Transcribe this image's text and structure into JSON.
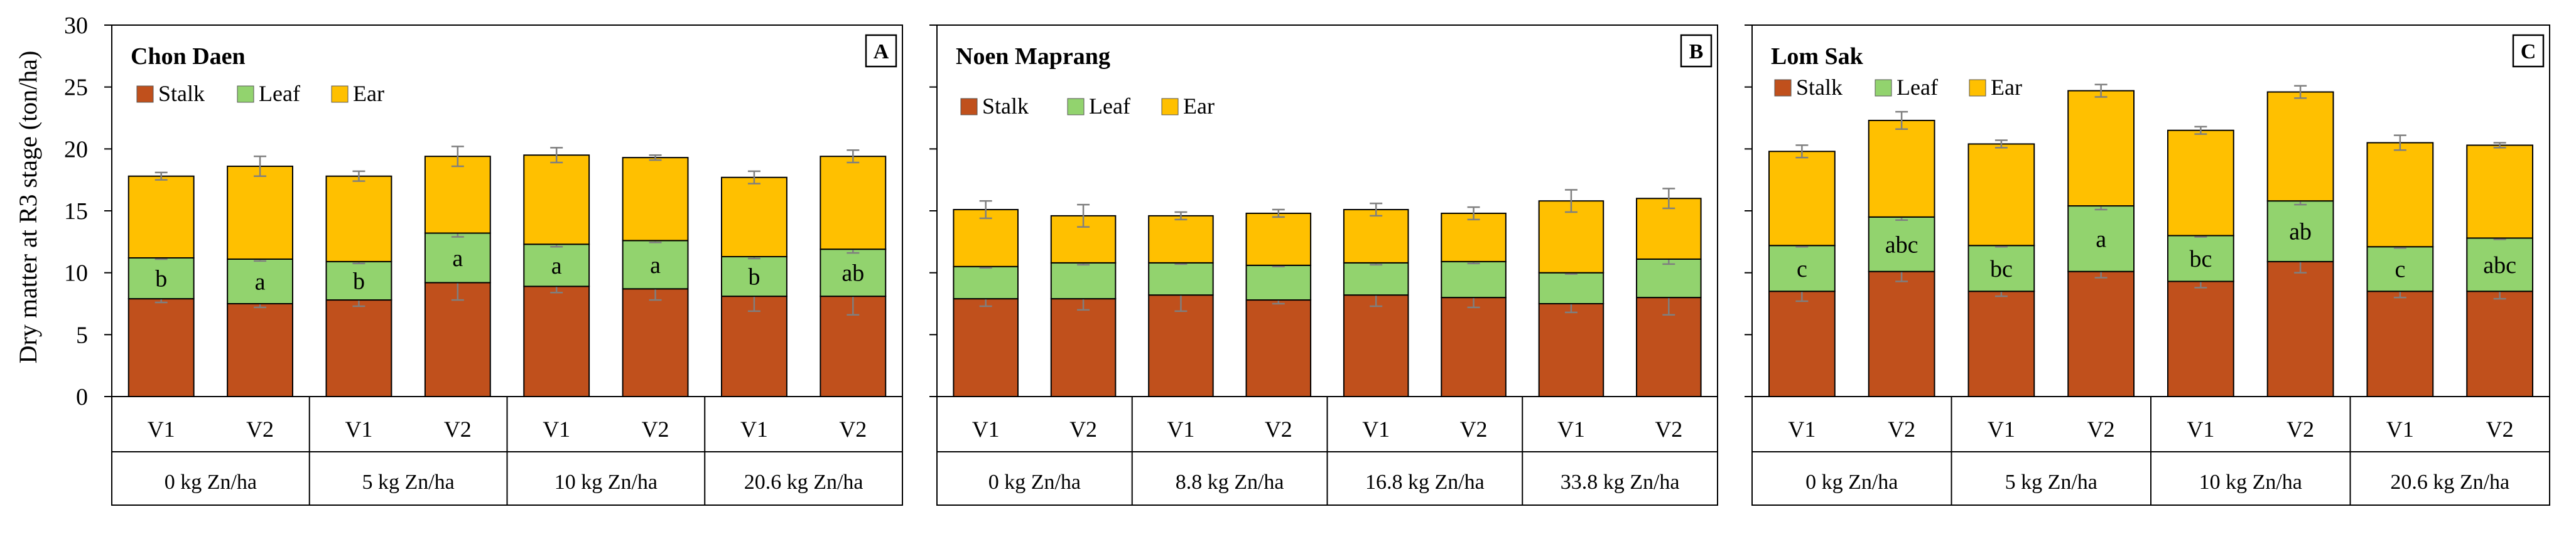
{
  "figure": {
    "ylabel": "Dry matter at R3 stage (ton/ha)",
    "y_ticks": [
      "0",
      "5",
      "10",
      "15",
      "20",
      "25",
      "30"
    ],
    "colors": {
      "Stalk": "#C0501C",
      "Leaf": "#92D36E",
      "Ear": "#FFC000",
      "error": "#7f7f7f"
    }
  },
  "chart_data": [
    {
      "type": "bar",
      "stacked": true,
      "title": "Chon Daen",
      "panel": "A",
      "ylim": [
        0,
        30
      ],
      "legend": [
        "Stalk",
        "Leaf",
        "Ear"
      ],
      "categories": [
        "V1",
        "V2",
        "V1",
        "V2",
        "V1",
        "V2",
        "V1",
        "V2"
      ],
      "groups": [
        "0 kg Zn/ha",
        "5 kg Zn/ha",
        "10 kg Zn/ha",
        "20.6 kg Zn/ha"
      ],
      "series": [
        {
          "name": "Stalk",
          "values": [
            7.9,
            7.5,
            7.8,
            9.2,
            8.9,
            8.7,
            8.1,
            8.1
          ],
          "errors": [
            0.3,
            0.3,
            0.5,
            1.4,
            0.5,
            0.9,
            1.2,
            1.5
          ]
        },
        {
          "name": "Leaf",
          "values": [
            3.3,
            3.6,
            3.1,
            4.0,
            3.4,
            3.9,
            3.2,
            3.8
          ],
          "errors": [
            0.1,
            0.15,
            0.15,
            0.3,
            0.2,
            0.15,
            0.15,
            0.3
          ]
        },
        {
          "name": "Ear",
          "values": [
            6.6,
            7.5,
            6.9,
            6.2,
            7.2,
            6.7,
            6.4,
            7.5
          ],
          "errors": [
            0.3,
            0.8,
            0.4,
            0.8,
            0.6,
            0.2,
            0.5,
            0.5
          ]
        }
      ],
      "labels": [
        "b",
        "a",
        "b",
        "a",
        "a",
        "a",
        "b",
        "ab"
      ]
    },
    {
      "type": "bar",
      "stacked": true,
      "title": "Noen Maprang",
      "panel": "B",
      "ylim": [
        0,
        30
      ],
      "legend": [
        "Stalk",
        "Leaf",
        "Ear"
      ],
      "categories": [
        "V1",
        "V2",
        "V1",
        "V2",
        "V1",
        "V2",
        "V1",
        "V2"
      ],
      "groups": [
        "0 kg Zn/ha",
        "8.8 kg Zn/ha",
        "16.8 kg Zn/ha",
        "33.8 kg Zn/ha"
      ],
      "series": [
        {
          "name": "Stalk",
          "values": [
            7.9,
            7.9,
            8.2,
            7.8,
            8.2,
            8.0,
            7.5,
            8.0
          ],
          "errors": [
            0.6,
            0.9,
            1.3,
            0.3,
            0.9,
            0.8,
            0.7,
            1.4
          ]
        },
        {
          "name": "Leaf",
          "values": [
            2.6,
            2.9,
            2.6,
            2.8,
            2.6,
            2.9,
            2.5,
            3.1
          ],
          "errors": [
            0.1,
            0.15,
            0.1,
            0.1,
            0.15,
            0.15,
            0.1,
            0.4
          ]
        },
        {
          "name": "Ear",
          "values": [
            4.6,
            3.8,
            3.8,
            4.2,
            4.3,
            3.9,
            5.8,
            4.9
          ],
          "errors": [
            0.7,
            0.9,
            0.3,
            0.3,
            0.5,
            0.5,
            0.9,
            0.8
          ]
        }
      ],
      "labels": []
    },
    {
      "type": "bar",
      "stacked": true,
      "title": "Lom Sak",
      "panel": "C",
      "ylim": [
        0,
        30
      ],
      "legend": [
        "Stalk",
        "Leaf",
        "Ear"
      ],
      "categories": [
        "V1",
        "V2",
        "V1",
        "V2",
        "V1",
        "V2",
        "V1",
        "V2"
      ],
      "groups": [
        "0 kg Zn/ha",
        "5 kg Zn/ha",
        "10 kg Zn/ha",
        "20.6 kg Zn/ha"
      ],
      "series": [
        {
          "name": "Stalk",
          "values": [
            8.5,
            10.1,
            8.5,
            10.1,
            9.3,
            10.9,
            8.5,
            8.5
          ],
          "errors": [
            0.8,
            0.8,
            0.4,
            0.5,
            0.5,
            0.9,
            0.5,
            0.6
          ]
        },
        {
          "name": "Leaf",
          "values": [
            3.7,
            4.4,
            3.7,
            5.3,
            3.7,
            4.9,
            3.6,
            4.3
          ],
          "errors": [
            0.1,
            0.25,
            0.1,
            0.3,
            0.1,
            0.3,
            0.1,
            0.1
          ]
        },
        {
          "name": "Ear",
          "values": [
            7.6,
            7.8,
            8.2,
            9.3,
            8.5,
            8.8,
            8.4,
            7.5
          ],
          "errors": [
            0.5,
            0.7,
            0.3,
            0.5,
            0.3,
            0.5,
            0.6,
            0.2
          ]
        }
      ],
      "labels": [
        "c",
        "abc",
        "bc",
        "a",
        "bc",
        "ab",
        "c",
        "abc"
      ]
    }
  ]
}
